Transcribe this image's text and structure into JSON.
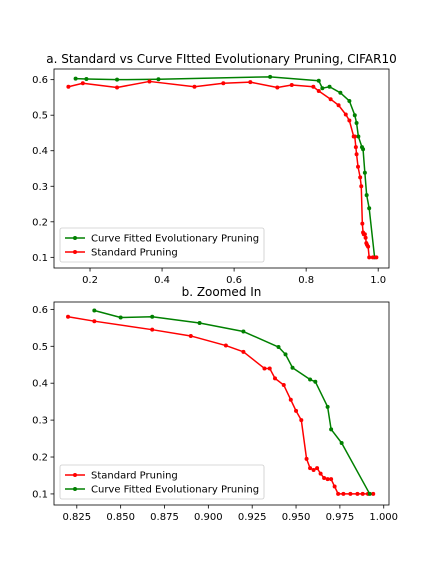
{
  "chart_data": [
    {
      "type": "line",
      "title": "a. Standard vs Curve FItted Evolutionary Pruning, CIFAR10",
      "xlabel": "",
      "ylabel": "",
      "xlim": [
        0.1,
        1.03
      ],
      "ylim": [
        0.07,
        0.63
      ],
      "xticks": [
        0.2,
        0.4,
        0.6,
        0.8,
        1.0
      ],
      "xtick_labels": [
        "0.2",
        "0.4",
        "0.6",
        "0.8",
        "1.0"
      ],
      "yticks": [
        0.1,
        0.2,
        0.3,
        0.4,
        0.5,
        0.6
      ],
      "ytick_labels": [
        "0.1",
        "0.2",
        "0.3",
        "0.4",
        "0.5",
        "0.6"
      ],
      "grid": false,
      "legend_position": "lower-left",
      "series": [
        {
          "name": "Curve Fitted Evolutionary Pruning",
          "color": "#008000",
          "x": [
            0.16,
            0.19,
            0.275,
            0.39,
            0.7,
            0.835,
            0.845,
            0.865,
            0.895,
            0.92,
            0.935,
            0.94,
            0.945,
            0.955,
            0.958,
            0.963,
            0.968,
            0.975,
            0.99
          ],
          "y": [
            0.603,
            0.602,
            0.6,
            0.601,
            0.608,
            0.597,
            0.576,
            0.58,
            0.563,
            0.54,
            0.5,
            0.478,
            0.44,
            0.41,
            0.404,
            0.338,
            0.275,
            0.238,
            0.1
          ]
        },
        {
          "name": "Standard Pruning",
          "color": "#ff0000",
          "x": [
            0.14,
            0.18,
            0.275,
            0.365,
            0.49,
            0.57,
            0.645,
            0.72,
            0.76,
            0.82,
            0.835,
            0.868,
            0.89,
            0.91,
            0.92,
            0.932,
            0.935,
            0.938,
            0.94,
            0.944,
            0.95,
            0.953,
            0.956,
            0.958,
            0.96,
            0.963,
            0.965,
            0.967,
            0.969,
            0.972,
            0.975,
            0.985,
            0.995
          ],
          "y": [
            0.58,
            0.59,
            0.578,
            0.595,
            0.58,
            0.59,
            0.593,
            0.578,
            0.585,
            0.58,
            0.568,
            0.545,
            0.528,
            0.502,
            0.485,
            0.44,
            0.44,
            0.41,
            0.39,
            0.355,
            0.325,
            0.3,
            0.195,
            0.17,
            0.165,
            0.165,
            0.155,
            0.14,
            0.135,
            0.13,
            0.1,
            0.1,
            0.1
          ]
        }
      ]
    },
    {
      "type": "line",
      "title": "b. Zoomed In",
      "xlabel": "",
      "ylabel": "",
      "xlim": [
        0.812,
        1.003
      ],
      "ylim": [
        0.07,
        0.62
      ],
      "xticks": [
        0.825,
        0.85,
        0.875,
        0.9,
        0.925,
        0.95,
        0.975,
        1.0
      ],
      "xtick_labels": [
        "0.825",
        "0.850",
        "0.875",
        "0.900",
        "0.925",
        "0.950",
        "0.975",
        "1.000"
      ],
      "yticks": [
        0.1,
        0.2,
        0.3,
        0.4,
        0.5,
        0.6
      ],
      "ytick_labels": [
        "0.1",
        "0.2",
        "0.3",
        "0.4",
        "0.5",
        "0.6"
      ],
      "grid": false,
      "legend_position": "lower-left",
      "series": [
        {
          "name": "Standard Pruning",
          "color": "#ff0000",
          "x": [
            0.82,
            0.835,
            0.868,
            0.89,
            0.91,
            0.92,
            0.932,
            0.935,
            0.938,
            0.943,
            0.947,
            0.95,
            0.953,
            0.956,
            0.958,
            0.96,
            0.962,
            0.964,
            0.966,
            0.968,
            0.97,
            0.972,
            0.974,
            0.977,
            0.981,
            0.985,
            0.988,
            0.991,
            0.994
          ],
          "y": [
            0.58,
            0.568,
            0.545,
            0.528,
            0.502,
            0.485,
            0.44,
            0.44,
            0.413,
            0.395,
            0.355,
            0.325,
            0.3,
            0.195,
            0.17,
            0.165,
            0.17,
            0.155,
            0.143,
            0.14,
            0.14,
            0.12,
            0.1,
            0.1,
            0.1,
            0.1,
            0.1,
            0.1,
            0.1
          ]
        },
        {
          "name": "Curve Fitted Evolutionary Pruning",
          "color": "#008000",
          "x": [
            0.835,
            0.85,
            0.868,
            0.895,
            0.92,
            0.94,
            0.944,
            0.948,
            0.958,
            0.961,
            0.968,
            0.97,
            0.976,
            0.992
          ],
          "y": [
            0.597,
            0.578,
            0.58,
            0.563,
            0.54,
            0.498,
            0.478,
            0.442,
            0.41,
            0.404,
            0.336,
            0.275,
            0.238,
            0.1
          ]
        }
      ]
    }
  ]
}
